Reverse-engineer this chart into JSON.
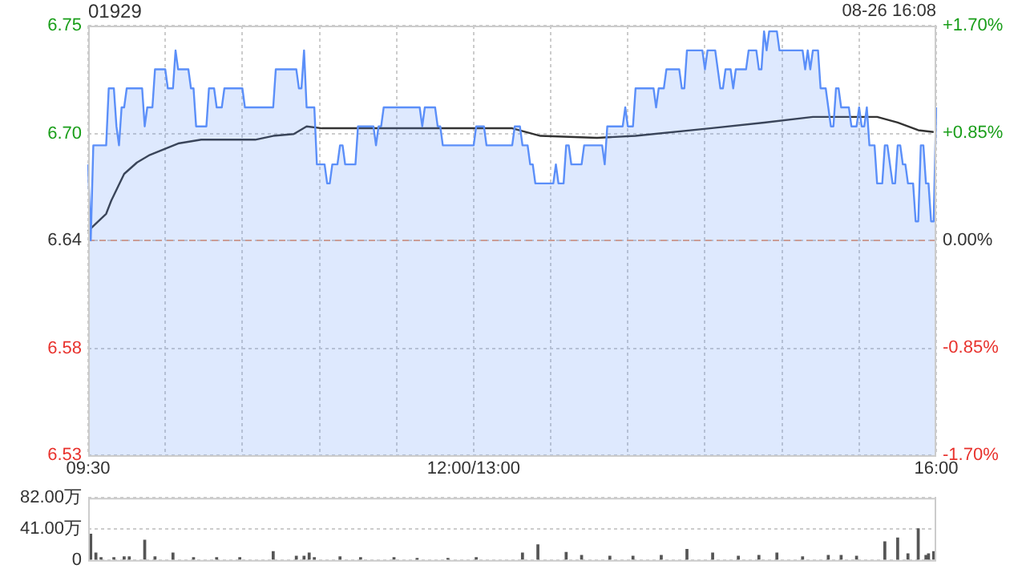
{
  "chart_data": [
    {
      "type": "line",
      "title": "01929",
      "annotations": [
        "08-26 16:08"
      ],
      "categories": [
        "09:30",
        null,
        null,
        null,
        null,
        null,
        null,
        null,
        null,
        null,
        null,
        null,
        null,
        null,
        null,
        null,
        null,
        null,
        null,
        null,
        null,
        null,
        null,
        null,
        null,
        null,
        null,
        null,
        null,
        null,
        null,
        null,
        null,
        null,
        null,
        null,
        null,
        null,
        null,
        null,
        null,
        null,
        null,
        null,
        null,
        null,
        null,
        null,
        null,
        null,
        null,
        null,
        null,
        null,
        null,
        null,
        null,
        null,
        null,
        null,
        null,
        null,
        null,
        null,
        null,
        null,
        null,
        null,
        null,
        null,
        null,
        null,
        null,
        null,
        null,
        null,
        null,
        null,
        null,
        null,
        null,
        null,
        null,
        null,
        null,
        null,
        null,
        null,
        null,
        null,
        null,
        null,
        null,
        null,
        null,
        null,
        null,
        null,
        null,
        null,
        null,
        null,
        null,
        null,
        null,
        null,
        null,
        null,
        null,
        null,
        null,
        null,
        null,
        null,
        null,
        null,
        null,
        null,
        null,
        null,
        null,
        null,
        null,
        null,
        null,
        null,
        null,
        null,
        null,
        null,
        null,
        null,
        null,
        null,
        null,
        null,
        null,
        null,
        null,
        null,
        null,
        null,
        null,
        null,
        null,
        null,
        null,
        null,
        null,
        null,
        "12:00/13:00",
        null,
        null,
        null,
        null,
        null,
        null,
        null,
        null,
        null,
        null,
        null,
        null,
        null,
        null,
        null,
        null,
        null,
        null,
        null,
        null,
        null,
        null,
        null,
        null,
        null,
        null,
        null,
        null,
        null,
        null,
        null,
        null,
        null,
        null,
        null,
        null,
        null,
        null,
        null,
        null,
        null,
        null,
        null,
        null,
        null,
        null,
        null,
        null,
        null,
        null,
        null,
        null,
        null,
        null,
        null,
        null,
        null,
        null,
        null,
        null,
        null,
        null,
        null,
        null,
        null,
        null,
        null,
        null,
        null,
        null,
        null,
        null,
        null,
        null,
        null,
        null,
        null,
        null,
        null,
        null,
        null,
        null,
        null,
        null,
        null,
        null,
        null,
        null,
        null,
        null,
        null,
        null,
        null,
        null,
        null,
        null,
        null,
        null,
        null,
        null,
        null,
        null,
        null,
        null,
        null,
        null,
        null,
        null,
        null,
        null,
        null,
        null,
        null,
        null,
        null,
        null,
        null,
        null,
        null,
        null,
        null,
        null,
        null,
        null,
        null,
        null,
        null,
        null,
        null,
        null,
        null,
        null,
        null,
        null,
        null,
        null,
        null,
        null,
        null,
        null,
        null,
        null,
        null,
        null,
        null,
        null,
        null,
        null,
        null,
        null,
        null,
        null,
        null,
        null,
        null,
        null,
        null,
        null,
        null,
        null,
        null,
        null,
        null,
        null,
        null,
        null,
        null,
        null,
        null,
        null,
        null,
        null,
        null,
        null,
        null,
        null,
        null,
        null,
        null,
        "16:00"
      ],
      "ylim": [
        6.527,
        6.753
      ],
      "yticks": [
        {
          "value": 6.527,
          "label": "6.53"
        },
        {
          "value": 6.583,
          "label": "6.58"
        },
        {
          "value": 6.64,
          "label": "6.64"
        },
        {
          "value": 6.696,
          "label": "6.70"
        },
        {
          "value": 6.753,
          "label": "6.75"
        }
      ],
      "y2lim": [
        -1.7,
        1.7
      ],
      "y2ticks": [
        {
          "value": -1.7,
          "label": "-1.70%"
        },
        {
          "value": -0.85,
          "label": "-0.85%"
        },
        {
          "value": 0,
          "label": "0.00%"
        },
        {
          "value": 0.85,
          "label": "+0.85%"
        },
        {
          "value": 1.7,
          "label": "+1.70%"
        }
      ],
      "ref_lines": [
        {
          "axis": "y",
          "value": 6.64,
          "color": "#e8a07f",
          "line_style": "dashed"
        }
      ],
      "grid": true,
      "legend": false,
      "marker": "none",
      "line_style": "solid",
      "series": [
        {
          "type": "area",
          "color": "#5b8ff9",
          "values": [
            6.68,
            6.64,
            6.69,
            6.69,
            6.69,
            6.69,
            6.69,
            6.69,
            6.72,
            6.72,
            6.72,
            6.7,
            6.69,
            6.71,
            6.71,
            6.72,
            6.72,
            6.72,
            6.72,
            6.72,
            6.72,
            6.72,
            6.7,
            6.71,
            6.71,
            6.71,
            6.73,
            6.73,
            6.73,
            6.73,
            6.73,
            6.72,
            6.72,
            6.72,
            6.74,
            6.73,
            6.73,
            6.73,
            6.73,
            6.73,
            6.72,
            6.72,
            6.7,
            6.7,
            6.7,
            6.7,
            6.7,
            6.72,
            6.72,
            6.72,
            6.71,
            6.71,
            6.71,
            6.72,
            6.72,
            6.72,
            6.72,
            6.72,
            6.72,
            6.72,
            6.72,
            6.71,
            6.71,
            6.71,
            6.71,
            6.71,
            6.71,
            6.71,
            6.71,
            6.71,
            6.71,
            6.71,
            6.71,
            6.73,
            6.73,
            6.73,
            6.73,
            6.73,
            6.73,
            6.73,
            6.73,
            6.73,
            6.72,
            6.72,
            6.74,
            6.71,
            6.71,
            6.71,
            6.71,
            6.68,
            6.68,
            6.68,
            6.68,
            6.67,
            6.67,
            6.68,
            6.68,
            6.68,
            6.69,
            6.69,
            6.68,
            6.68,
            6.68,
            6.68,
            6.68,
            6.7,
            6.7,
            6.7,
            6.7,
            6.7,
            6.7,
            6.7,
            6.69,
            6.7,
            6.7,
            6.71,
            6.71,
            6.71,
            6.71,
            6.71,
            6.71,
            6.71,
            6.71,
            6.71,
            6.71,
            6.71,
            6.71,
            6.71,
            6.71,
            6.71,
            6.7,
            6.71,
            6.71,
            6.71,
            6.71,
            6.71,
            6.7,
            6.7,
            6.69,
            6.69,
            6.69,
            6.69,
            6.69,
            6.69,
            6.69,
            6.69,
            6.69,
            6.69,
            6.69,
            6.69,
            6.69,
            6.7,
            6.7,
            6.7,
            6.7,
            6.69,
            6.69,
            6.69,
            6.69,
            6.69,
            6.69,
            6.69,
            6.69,
            6.69,
            6.69,
            6.69,
            6.7,
            6.7,
            6.7,
            6.69,
            6.69,
            6.69,
            6.68,
            6.68,
            6.67,
            6.67,
            6.67,
            6.67,
            6.67,
            6.67,
            6.67,
            6.67,
            6.68,
            6.67,
            6.67,
            6.67,
            6.69,
            6.69,
            6.68,
            6.68,
            6.68,
            6.68,
            6.68,
            6.69,
            6.69,
            6.69,
            6.69,
            6.69,
            6.69,
            6.69,
            6.69,
            6.68,
            6.7,
            6.7,
            6.7,
            6.7,
            6.7,
            6.7,
            6.7,
            6.71,
            6.7,
            6.7,
            6.7,
            6.72,
            6.72,
            6.72,
            6.72,
            6.72,
            6.72,
            6.72,
            6.72,
            6.71,
            6.72,
            6.72,
            6.72,
            6.73,
            6.73,
            6.73,
            6.73,
            6.73,
            6.73,
            6.72,
            6.72,
            6.74,
            6.74,
            6.74,
            6.74,
            6.74,
            6.74,
            6.74,
            6.73,
            6.74,
            6.74,
            6.74,
            6.74,
            6.73,
            6.72,
            6.72,
            6.73,
            6.73,
            6.73,
            6.72,
            6.73,
            6.73,
            6.73,
            6.73,
            6.73,
            6.74,
            6.74,
            6.74,
            6.74,
            6.73,
            6.73,
            6.75,
            6.74,
            6.75,
            6.75,
            6.75,
            6.75,
            6.74,
            6.74,
            6.74,
            6.74,
            6.74,
            6.74,
            6.74,
            6.74,
            6.74,
            6.74,
            6.73,
            6.74,
            6.73,
            6.74,
            6.74,
            6.74,
            6.72,
            6.72,
            6.72,
            6.71,
            6.7,
            6.7,
            6.72,
            6.72,
            6.71,
            6.71,
            6.71,
            6.71,
            6.7,
            6.7,
            6.7,
            6.71,
            6.7,
            6.7,
            6.71,
            6.69,
            6.69,
            6.69,
            6.67,
            6.67,
            6.67,
            6.69,
            6.69,
            6.68,
            6.67,
            6.67,
            6.69,
            6.69,
            6.68,
            6.68,
            6.67,
            6.67,
            6.67,
            6.65,
            6.65,
            6.69,
            6.69,
            6.67,
            6.67,
            6.65,
            6.65,
            6.71
          ]
        },
        {
          "type": "line",
          "color": "#333333",
          "values": [
            6.645,
            null,
            null,
            null,
            null,
            null,
            null,
            6.654,
            null,
            6.661,
            null,
            null,
            null,
            null,
            6.675,
            null,
            null,
            null,
            null,
            6.681,
            null,
            null,
            null,
            null,
            6.685,
            null,
            null,
            null,
            null,
            null,
            null,
            null,
            null,
            null,
            null,
            6.691,
            null,
            null,
            null,
            null,
            null,
            null,
            null,
            null,
            6.693,
            null,
            null,
            null,
            null,
            null,
            null,
            null,
            null,
            null,
            null,
            null,
            null,
            null,
            null,
            null,
            null,
            null,
            null,
            null,
            null,
            6.693,
            null,
            null,
            null,
            null,
            null,
            null,
            6.695,
            null,
            null,
            null,
            null,
            null,
            null,
            null,
            6.696,
            null,
            null,
            null,
            null,
            6.7,
            null,
            null,
            null,
            null,
            null,
            6.699,
            null,
            null,
            null,
            null,
            null,
            null,
            null,
            null,
            null,
            null,
            null,
            null,
            null,
            null,
            null,
            null,
            null,
            null,
            null,
            null,
            null,
            null,
            null,
            null,
            null,
            null,
            null,
            null,
            null,
            null,
            null,
            null,
            null,
            null,
            null,
            null,
            null,
            null,
            null,
            null,
            null,
            null,
            null,
            null,
            null,
            null,
            null,
            null,
            null,
            null,
            null,
            null,
            null,
            null,
            null,
            null,
            null,
            null,
            6.699,
            null,
            null,
            null,
            null,
            null,
            null,
            null,
            null,
            null,
            null,
            null,
            null,
            null,
            null,
            6.699,
            null,
            null,
            null,
            null,
            null,
            null,
            null,
            null,
            null,
            null,
            6.695,
            null,
            null,
            null,
            null,
            null,
            null,
            null,
            null,
            null,
            null,
            null,
            null,
            null,
            null,
            null,
            null,
            null,
            null,
            null,
            null,
            null,
            6.694,
            null,
            null,
            null,
            null,
            null,
            null,
            null,
            null,
            null,
            null,
            null,
            null,
            null,
            null,
            6.695,
            null,
            null,
            null,
            null,
            null,
            null,
            null,
            null,
            null,
            null,
            null,
            null,
            null,
            null,
            null,
            null,
            null,
            null,
            null,
            null,
            null,
            null,
            null,
            null,
            null,
            null,
            null,
            null,
            6.699,
            null,
            null,
            null,
            null,
            null,
            null,
            null,
            null,
            null,
            null,
            null,
            null,
            null,
            null,
            null,
            null,
            null,
            null,
            null,
            null,
            6.702,
            null,
            null,
            null,
            null,
            null,
            null,
            null,
            null,
            null,
            null,
            null,
            null,
            null,
            null,
            null,
            null,
            null,
            null,
            6.705,
            null,
            null,
            null,
            null,
            null,
            null,
            null,
            null,
            null,
            null,
            null,
            null,
            null,
            null,
            null,
            null,
            null,
            null,
            null,
            null,
            null,
            null,
            null,
            null,
            6.705,
            null,
            null,
            null,
            null,
            null,
            null,
            null,
            6.702,
            null,
            null,
            null,
            null,
            null,
            null,
            null,
            6.698,
            null,
            null,
            null,
            null,
            null,
            6.697,
            null
          ]
        }
      ]
    },
    {
      "type": "bar",
      "color": "#555555",
      "ylim": [
        0,
        82
      ],
      "categories": [
        null,
        null,
        null,
        null,
        null,
        null,
        null,
        null,
        null,
        null,
        null,
        null,
        null,
        null,
        null,
        null,
        null,
        null,
        null,
        null,
        null,
        null,
        null,
        null,
        null,
        null,
        null,
        null,
        null,
        null,
        null,
        null,
        null,
        null,
        null,
        null,
        null,
        null,
        null,
        null,
        null,
        null,
        null,
        null,
        null,
        null,
        null,
        null,
        null,
        null,
        null,
        null,
        null,
        null,
        null,
        null,
        null,
        null,
        null,
        null,
        null,
        null,
        null,
        null,
        null,
        null,
        null,
        null,
        null,
        null,
        null,
        null,
        null,
        null,
        null,
        null,
        null,
        null,
        null,
        null,
        null,
        null,
        null,
        null,
        null,
        null,
        null,
        null,
        null,
        null,
        null,
        null,
        null,
        null,
        null,
        null,
        null,
        null,
        null,
        null,
        null,
        null,
        null,
        null,
        null,
        null,
        null,
        null,
        null,
        null,
        null,
        null,
        null,
        null,
        null,
        null,
        null,
        null,
        null,
        null,
        null,
        null,
        null,
        null,
        null,
        null,
        null,
        null,
        null,
        null,
        null,
        null,
        null,
        null,
        null,
        null,
        null,
        null,
        null,
        null,
        null,
        null,
        null,
        null,
        null,
        null,
        null,
        null,
        null,
        null,
        null,
        null,
        null,
        null,
        null,
        null,
        null,
        null,
        null,
        null,
        null,
        null,
        null,
        null,
        null,
        null,
        null,
        null,
        null,
        null,
        null,
        null,
        null,
        null,
        null,
        null,
        null,
        null,
        null,
        null,
        null,
        null,
        null,
        null,
        null,
        null,
        null,
        null,
        null,
        null,
        null,
        null,
        null,
        null,
        null,
        null,
        null,
        null,
        null,
        null,
        null,
        null,
        null,
        null,
        null,
        null,
        null,
        null,
        null,
        null,
        null,
        null,
        null,
        null,
        null,
        null,
        null,
        null,
        null,
        null,
        null,
        null,
        null,
        null,
        null,
        null,
        null,
        null,
        null,
        null,
        null,
        null,
        null,
        null,
        null,
        null,
        null,
        null,
        null,
        null,
        null,
        null,
        null,
        null,
        null,
        null,
        null,
        null,
        null,
        null,
        null,
        null,
        null,
        null,
        null,
        null,
        null,
        null,
        null,
        null,
        null,
        null,
        null,
        null,
        null,
        null,
        null,
        null,
        null,
        null,
        null,
        null,
        null,
        null,
        null,
        null,
        null,
        null,
        null,
        null,
        null,
        null,
        null,
        null,
        null,
        null,
        null,
        null,
        null,
        null,
        null,
        null,
        null,
        null,
        null,
        null,
        null,
        null,
        null,
        null,
        null,
        null,
        null,
        null,
        null,
        null,
        null,
        null,
        null,
        null,
        null,
        null,
        null,
        null,
        null,
        null,
        null,
        null,
        null,
        null,
        null,
        null,
        null,
        null,
        null,
        null,
        null,
        null,
        null,
        null,
        null
      ],
      "yticks": [
        0,
        {
          "value": 41,
          "label": "41.00万"
        },
        {
          "value": 82,
          "label": "82.00万"
        }
      ],
      "grid": "y",
      "legend": false,
      "tick_labels": "y",
      "values": [
        null,
        34,
        null,
        9,
        null,
        3,
        null,
        null,
        null,
        null,
        3,
        null,
        null,
        null,
        4,
        null,
        4,
        null,
        null,
        null,
        null,
        null,
        26,
        null,
        null,
        null,
        4,
        null,
        null,
        null,
        null,
        null,
        null,
        9,
        null,
        null,
        null,
        null,
        null,
        null,
        null,
        3,
        null,
        null,
        null,
        null,
        null,
        null,
        null,
        null,
        3,
        null,
        null,
        null,
        null,
        null,
        null,
        null,
        null,
        3,
        null,
        null,
        null,
        null,
        null,
        null,
        null,
        null,
        null,
        null,
        null,
        null,
        11,
        null,
        null,
        null,
        null,
        null,
        null,
        null,
        null,
        5,
        null,
        null,
        5,
        null,
        9,
        null,
        3,
        null,
        null,
        null,
        null,
        null,
        null,
        null,
        null,
        null,
        4,
        null,
        null,
        null,
        null,
        null,
        null,
        null,
        3,
        null,
        null,
        null,
        null,
        null,
        null,
        null,
        null,
        null,
        null,
        null,
        null,
        3,
        null,
        null,
        null,
        null,
        null,
        null,
        null,
        null,
        2,
        null,
        null,
        null,
        null,
        null,
        null,
        null,
        null,
        null,
        null,
        null,
        2,
        null,
        null,
        null,
        null,
        null,
        null,
        null,
        null,
        null,
        null,
        3,
        null,
        null,
        null,
        null,
        null,
        null,
        null,
        null,
        null,
        null,
        null,
        null,
        null,
        null,
        null,
        null,
        null,
        9,
        null,
        null,
        null,
        null,
        null,
        20,
        null,
        null,
        null,
        null,
        null,
        null,
        null,
        null,
        null,
        null,
        10,
        null,
        null,
        null,
        null,
        null,
        6,
        null,
        null,
        null,
        null,
        null,
        null,
        null,
        null,
        null,
        null,
        5,
        null,
        null,
        null,
        null,
        null,
        null,
        null,
        null,
        5,
        null,
        null,
        null,
        null,
        null,
        null,
        null,
        null,
        null,
        null,
        6,
        null,
        null,
        null,
        null,
        null,
        null,
        null,
        null,
        null,
        14,
        null,
        null,
        null,
        null,
        null,
        null,
        null,
        null,
        null,
        9,
        null,
        null,
        null,
        null,
        null,
        null,
        null,
        null,
        null,
        5,
        null,
        null,
        null,
        null,
        null,
        null,
        null,
        6,
        null,
        null,
        null,
        null,
        null,
        null,
        9,
        null,
        null,
        null,
        null,
        null,
        null,
        null,
        null,
        null,
        4,
        null,
        null,
        null,
        null,
        null,
        null,
        null,
        null,
        null,
        6,
        null,
        null,
        null,
        null,
        6,
        null,
        null,
        null,
        null,
        null,
        5,
        null,
        null,
        null,
        null,
        null,
        null,
        null,
        null,
        null,
        null,
        24,
        null,
        null,
        null,
        null,
        29,
        null,
        null,
        null,
        8,
        null,
        null,
        null,
        41,
        null,
        null,
        6,
        8,
        null,
        11,
        null
      ]
    }
  ]
}
